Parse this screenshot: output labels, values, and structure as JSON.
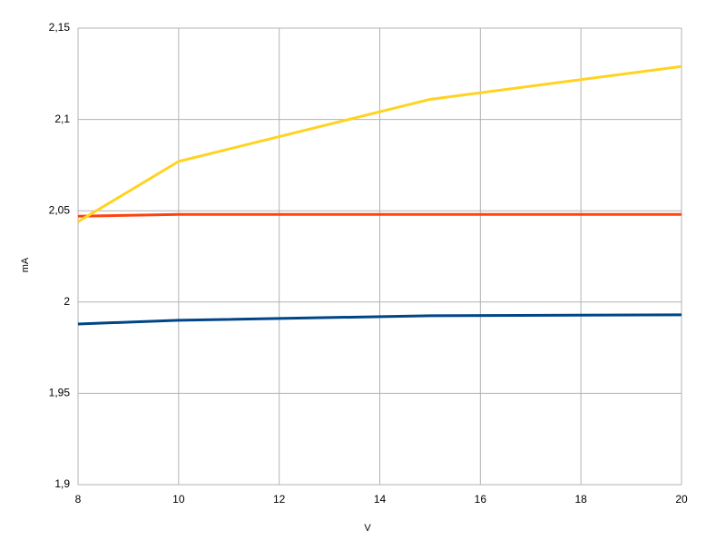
{
  "chart_data": {
    "type": "line",
    "xlabel": "V",
    "ylabel": "mA",
    "x": [
      8,
      10,
      15,
      20
    ],
    "series": [
      {
        "color": "#004586",
        "values": [
          1.988,
          1.99,
          1.9925,
          1.993
        ]
      },
      {
        "color": "#ff420e",
        "values": [
          2.047,
          2.048,
          2.048,
          2.048
        ]
      },
      {
        "color": "#ffd320",
        "values": [
          2.044,
          2.077,
          2.111,
          2.129
        ]
      }
    ],
    "xlim": [
      8,
      20
    ],
    "xticks": [
      8,
      10,
      12,
      14,
      16,
      18,
      20
    ],
    "ylim": [
      1.9,
      2.15
    ],
    "yticks": [
      {
        "value": 1.9,
        "label": "1,9"
      },
      {
        "value": 1.95,
        "label": "1,95"
      },
      2,
      {
        "value": 2.05,
        "label": "2,05"
      },
      {
        "value": 2.1,
        "label": "2,1"
      },
      {
        "value": 2.15,
        "label": "2,15"
      }
    ],
    "grid": true
  }
}
